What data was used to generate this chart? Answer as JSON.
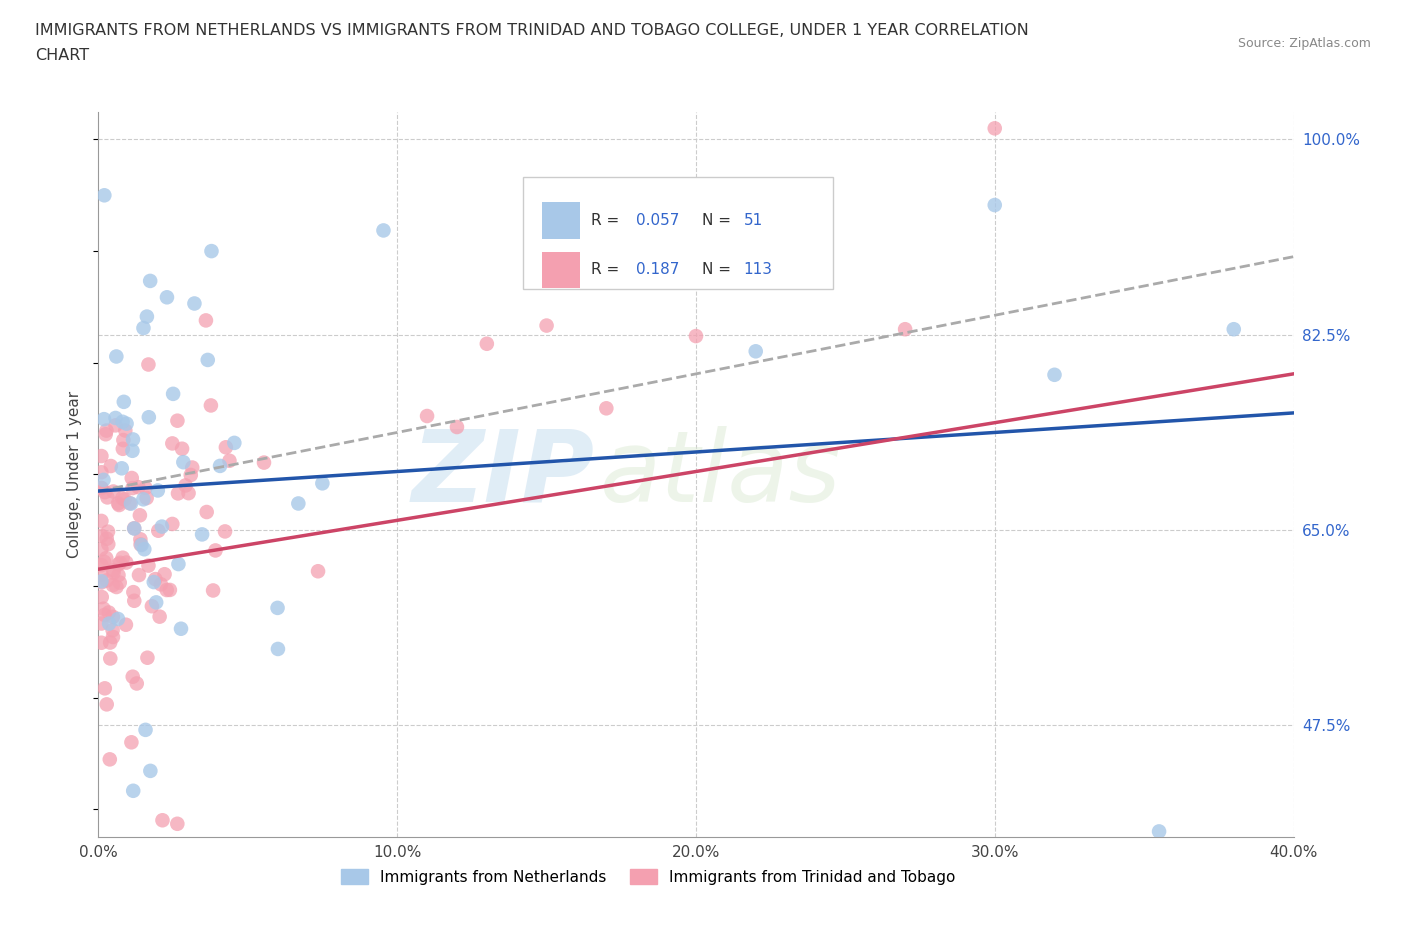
{
  "title_line1": "IMMIGRANTS FROM NETHERLANDS VS IMMIGRANTS FROM TRINIDAD AND TOBAGO COLLEGE, UNDER 1 YEAR CORRELATION",
  "title_line2": "CHART",
  "source": "Source: ZipAtlas.com",
  "xlabel": "Immigrants from Netherlands",
  "ylabel": "College, Under 1 year",
  "xlim": [
    0.0,
    0.4
  ],
  "ylim": [
    0.375,
    1.025
  ],
  "xticks": [
    0.0,
    0.1,
    0.2,
    0.3,
    0.4
  ],
  "xticklabels": [
    "0.0%",
    "10.0%",
    "20.0%",
    "30.0%",
    "40.0%"
  ],
  "yticks_right": [
    0.475,
    0.65,
    0.825,
    1.0
  ],
  "yticklabels_right": [
    "47.5%",
    "65.0%",
    "82.5%",
    "100.0%"
  ],
  "blue_color": "#a8c8e8",
  "pink_color": "#f4a0b0",
  "trend_blue_color": "#2255aa",
  "trend_pink_color": "#cc4466",
  "trend_gray_dashed_color": "#aaaaaa",
  "R_blue": 0.057,
  "N_blue": 51,
  "R_pink": 0.187,
  "N_pink": 113,
  "watermark_text": "ZIP",
  "watermark_text2": "atlas",
  "background_color": "#ffffff",
  "grid_color": "#cccccc",
  "tick_label_color": "#3366cc",
  "legend_box_color": "#f0f0f0",
  "legend_border_color": "#cccccc"
}
